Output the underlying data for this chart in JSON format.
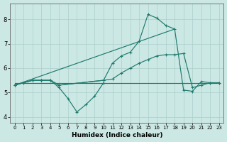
{
  "xlabel": "Humidex (Indice chaleur)",
  "bg_color": "#cce8e4",
  "grid_color": "#aacfcb",
  "line_color": "#1e7a6e",
  "xlim": [
    -0.5,
    23.5
  ],
  "ylim": [
    3.75,
    8.65
  ],
  "xtick_vals": [
    0,
    1,
    2,
    3,
    4,
    5,
    6,
    7,
    8,
    9,
    10,
    11,
    12,
    13,
    14,
    15,
    16,
    17,
    18,
    19,
    20,
    21,
    22,
    23
  ],
  "ytick_vals": [
    4,
    5,
    6,
    7,
    8
  ],
  "lines": [
    {
      "x": [
        0,
        23
      ],
      "y": [
        5.4,
        5.4
      ],
      "marker": false
    },
    {
      "x": [
        0,
        1,
        2,
        3,
        4,
        5,
        6,
        7,
        8,
        9,
        10
      ],
      "y": [
        5.3,
        5.4,
        5.5,
        5.5,
        5.5,
        5.2,
        4.75,
        4.2,
        4.5,
        4.85,
        5.4
      ],
      "marker": true
    },
    {
      "x": [
        0,
        2,
        3,
        4,
        5,
        10,
        11,
        12,
        13,
        14,
        15,
        16,
        17,
        18,
        19,
        20,
        21,
        22,
        23
      ],
      "y": [
        5.3,
        5.5,
        5.5,
        5.5,
        5.3,
        5.5,
        6.2,
        6.5,
        6.65,
        7.1,
        8.2,
        8.05,
        7.75,
        7.6,
        5.1,
        5.05,
        5.45,
        5.4,
        5.4
      ],
      "marker": true
    },
    {
      "x": [
        0,
        2,
        3,
        4,
        5,
        10,
        11,
        12,
        13,
        14,
        15,
        16,
        17,
        18,
        19,
        20,
        21,
        22,
        23
      ],
      "y": [
        5.3,
        5.5,
        5.5,
        5.5,
        5.3,
        5.5,
        5.55,
        5.8,
        6.0,
        6.2,
        6.35,
        6.5,
        6.55,
        6.55,
        6.6,
        5.2,
        5.3,
        5.4,
        5.4
      ],
      "marker": true
    },
    {
      "x": [
        0,
        18
      ],
      "y": [
        5.3,
        7.6
      ],
      "marker": false
    }
  ]
}
